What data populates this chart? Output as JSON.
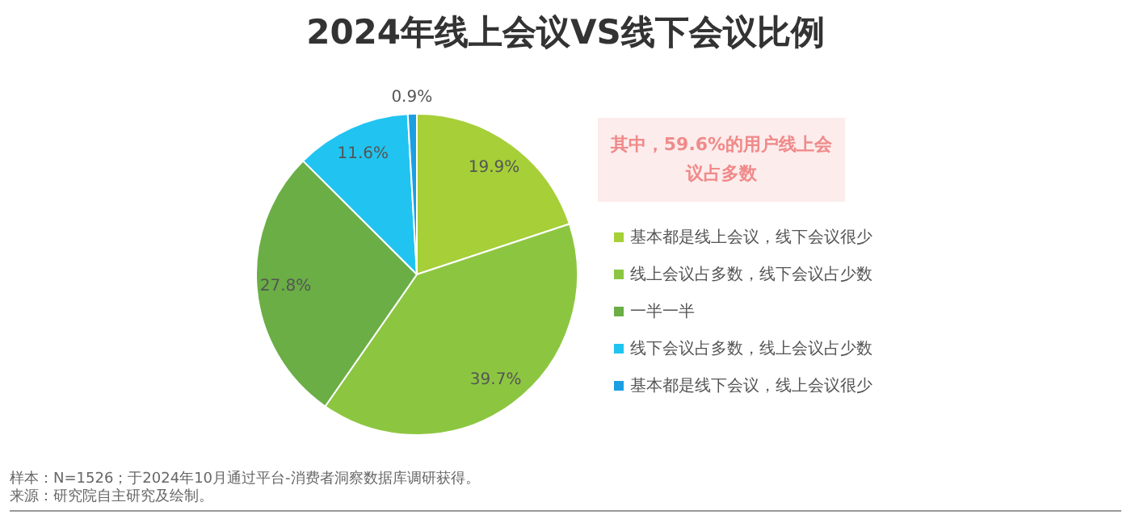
{
  "chart_data": {
    "type": "pie",
    "title": "2024年线上会议VS线下会议比例",
    "categories": [
      "基本都是线上会议，线下会议很少",
      "线上会议占多数，线下会议占少数",
      "一半一半",
      "线下会议占多数，线上会议占少数",
      "基本都是线下会议，线上会议很少"
    ],
    "values": [
      19.9,
      39.7,
      27.8,
      11.6,
      0.9
    ],
    "colors": [
      "#a6cf38",
      "#8cc641",
      "#6aae45",
      "#21c4f0",
      "#1c9fe2"
    ],
    "value_labels": [
      "19.9%",
      "39.7%",
      "27.8%",
      "11.6%",
      "0.9%"
    ],
    "legend": "right",
    "annotations": [
      "其中，59.6%的用户线上会议占多数",
      "样本：N=1526；于2024年10月通过平台-消费者洞察数据库调研获得。",
      "来源：研究院自主研究及绘制。"
    ]
  }
}
